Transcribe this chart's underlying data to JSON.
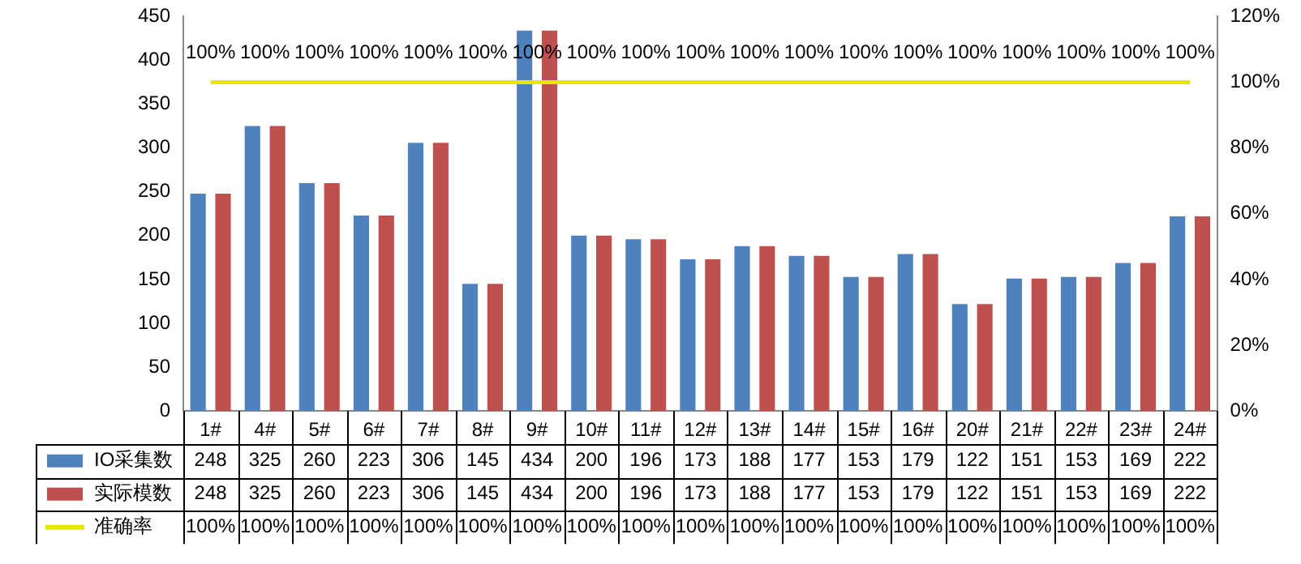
{
  "chart_data": {
    "type": "bar",
    "categories": [
      "1#",
      "4#",
      "5#",
      "6#",
      "7#",
      "8#",
      "9#",
      "10#",
      "11#",
      "12#",
      "13#",
      "14#",
      "15#",
      "16#",
      "20#",
      "21#",
      "22#",
      "23#",
      "24#"
    ],
    "series": [
      {
        "name": "IO采集数",
        "color": "#4f81bd",
        "values": [
          248,
          325,
          260,
          223,
          306,
          145,
          434,
          200,
          196,
          173,
          188,
          177,
          153,
          179,
          122,
          151,
          153,
          169,
          222
        ]
      },
      {
        "name": "实际模数",
        "color": "#c0504d",
        "values": [
          248,
          325,
          260,
          223,
          306,
          145,
          434,
          200,
          196,
          173,
          188,
          177,
          153,
          179,
          122,
          151,
          153,
          169,
          222
        ]
      },
      {
        "name": "准确率",
        "type": "line",
        "axis": "y2",
        "color": "#e6e600",
        "marker": "none",
        "values": [
          100,
          100,
          100,
          100,
          100,
          100,
          100,
          100,
          100,
          100,
          100,
          100,
          100,
          100,
          100,
          100,
          100,
          100,
          100
        ],
        "value_labels": [
          "100%",
          "100%",
          "100%",
          "100%",
          "100%",
          "100%",
          "100%",
          "100%",
          "100%",
          "100%",
          "100%",
          "100%",
          "100%",
          "100%",
          "100%",
          "100%",
          "100%",
          "100%",
          "100%"
        ]
      }
    ],
    "ylim": [
      0,
      450
    ],
    "yticks": [
      0,
      50,
      100,
      150,
      200,
      250,
      300,
      350,
      400,
      450
    ],
    "y2lim": [
      0,
      120
    ],
    "y2ticks": [
      {
        "value": 0,
        "label": "0%"
      },
      {
        "value": 20,
        "label": "20%"
      },
      {
        "value": 40,
        "label": "40%"
      },
      {
        "value": 60,
        "label": "60%"
      },
      {
        "value": 80,
        "label": "80%"
      },
      {
        "value": 100,
        "label": "100%"
      },
      {
        "value": 120,
        "label": "120%"
      }
    ],
    "data_labels": true,
    "legend": "bottom"
  }
}
